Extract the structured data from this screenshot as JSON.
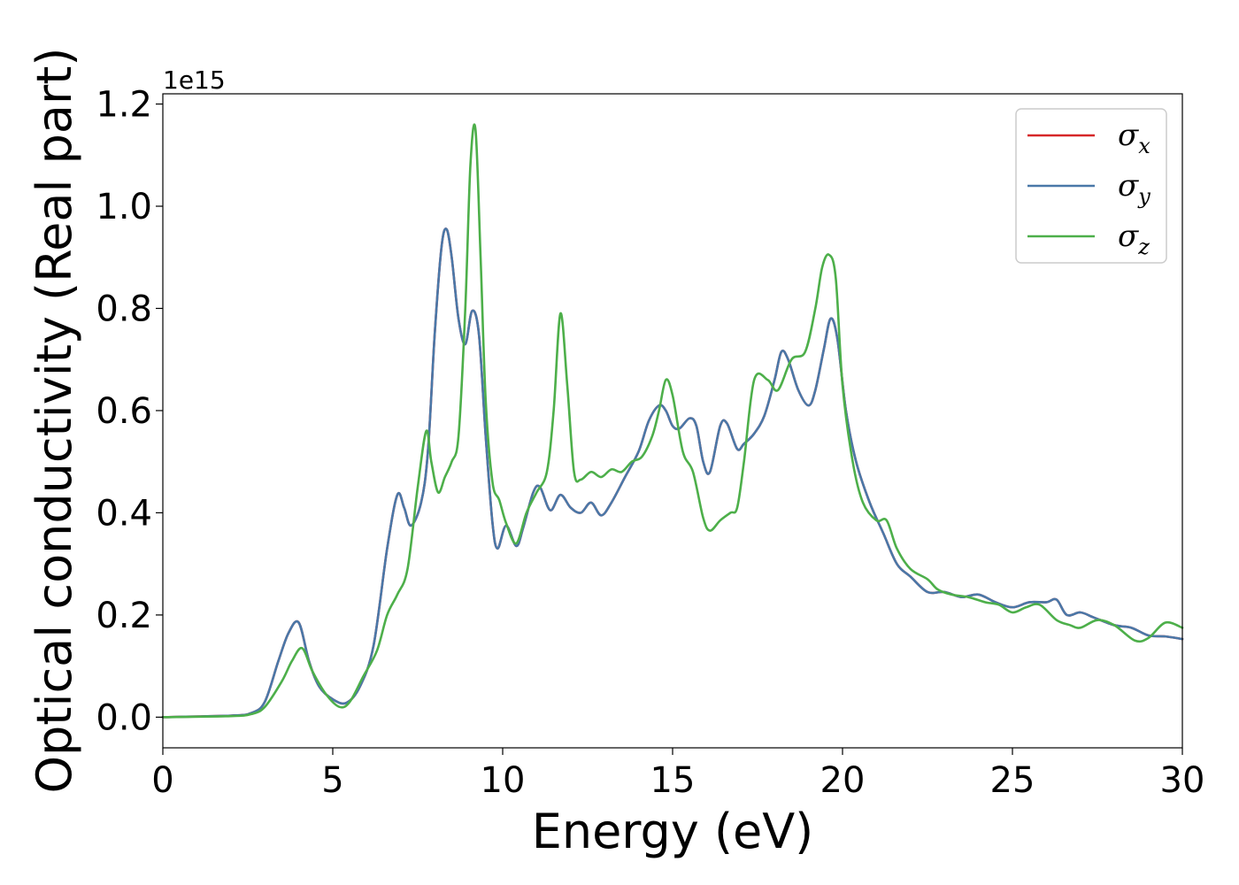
{
  "chart_data": {
    "type": "line",
    "title": "",
    "xlabel": "Energy (eV)",
    "ylabel": "Optical conductivity (Real part)",
    "y_offset_label": "1e15",
    "xlim": [
      0,
      30
    ],
    "ylim": [
      -0.06,
      1.22
    ],
    "x_ticks": [
      0,
      5,
      10,
      15,
      20,
      25,
      30
    ],
    "x_tick_labels": [
      "0",
      "5",
      "10",
      "15",
      "20",
      "25",
      "30"
    ],
    "y_ticks": [
      0.0,
      0.2,
      0.4,
      0.6,
      0.8,
      1.0,
      1.2
    ],
    "y_tick_labels": [
      "0.0",
      "0.2",
      "0.4",
      "0.6",
      "0.8",
      "1.0",
      "1.2"
    ],
    "grid": false,
    "legend_position": "top-right",
    "series": [
      {
        "name": "σx",
        "symbol": "σ",
        "subscript": "x",
        "color": "#d62728",
        "x": [
          0,
          2,
          2.6,
          3.0,
          3.4,
          3.7,
          4.0,
          4.3,
          4.6,
          5.0,
          5.4,
          5.8,
          6.2,
          6.6,
          6.9,
          7.1,
          7.3,
          7.6,
          7.8,
          8.0,
          8.2,
          8.35,
          8.5,
          8.7,
          8.9,
          9.1,
          9.3,
          9.5,
          9.7,
          9.85,
          10.1,
          10.4,
          10.6,
          10.9,
          11.1,
          11.4,
          11.7,
          12.0,
          12.3,
          12.6,
          12.9,
          13.2,
          13.6,
          14.0,
          14.3,
          14.6,
          14.8,
          15.0,
          15.2,
          15.5,
          15.7,
          15.9,
          16.1,
          16.4,
          16.6,
          16.9,
          17.1,
          17.4,
          17.7,
          18.0,
          18.2,
          18.4,
          18.7,
          19.0,
          19.2,
          19.45,
          19.65,
          19.85,
          20.1,
          20.4,
          20.8,
          21.2,
          21.6,
          22.0,
          22.5,
          23.0,
          23.5,
          24.0,
          24.5,
          25.0,
          25.5,
          26.0,
          26.3,
          26.6,
          27.0,
          27.4,
          28.0,
          28.5,
          29.0,
          29.5,
          30.0
        ],
        "y": [
          0.0,
          0.003,
          0.008,
          0.03,
          0.11,
          0.165,
          0.185,
          0.11,
          0.06,
          0.035,
          0.028,
          0.06,
          0.14,
          0.33,
          0.435,
          0.41,
          0.375,
          0.42,
          0.52,
          0.75,
          0.92,
          0.955,
          0.9,
          0.78,
          0.73,
          0.795,
          0.75,
          0.55,
          0.38,
          0.33,
          0.375,
          0.335,
          0.37,
          0.44,
          0.45,
          0.405,
          0.435,
          0.41,
          0.4,
          0.42,
          0.395,
          0.42,
          0.47,
          0.52,
          0.58,
          0.61,
          0.6,
          0.57,
          0.565,
          0.585,
          0.57,
          0.5,
          0.48,
          0.57,
          0.575,
          0.525,
          0.535,
          0.555,
          0.59,
          0.66,
          0.715,
          0.7,
          0.64,
          0.61,
          0.64,
          0.72,
          0.78,
          0.74,
          0.6,
          0.5,
          0.42,
          0.36,
          0.3,
          0.275,
          0.245,
          0.245,
          0.235,
          0.24,
          0.225,
          0.215,
          0.225,
          0.225,
          0.23,
          0.2,
          0.205,
          0.195,
          0.18,
          0.175,
          0.16,
          0.158,
          0.153
        ]
      },
      {
        "name": "σy",
        "symbol": "σ",
        "subscript": "y",
        "color": "#4a78a8",
        "x": [
          0,
          2,
          2.6,
          3.0,
          3.4,
          3.7,
          4.0,
          4.3,
          4.6,
          5.0,
          5.4,
          5.8,
          6.2,
          6.6,
          6.9,
          7.1,
          7.3,
          7.6,
          7.8,
          8.0,
          8.2,
          8.35,
          8.5,
          8.7,
          8.9,
          9.1,
          9.3,
          9.5,
          9.7,
          9.85,
          10.1,
          10.4,
          10.6,
          10.9,
          11.1,
          11.4,
          11.7,
          12.0,
          12.3,
          12.6,
          12.9,
          13.2,
          13.6,
          14.0,
          14.3,
          14.6,
          14.8,
          15.0,
          15.2,
          15.5,
          15.7,
          15.9,
          16.1,
          16.4,
          16.6,
          16.9,
          17.1,
          17.4,
          17.7,
          18.0,
          18.2,
          18.4,
          18.7,
          19.0,
          19.2,
          19.45,
          19.65,
          19.85,
          20.1,
          20.4,
          20.8,
          21.2,
          21.6,
          22.0,
          22.5,
          23.0,
          23.5,
          24.0,
          24.5,
          25.0,
          25.5,
          26.0,
          26.3,
          26.6,
          27.0,
          27.4,
          28.0,
          28.5,
          29.0,
          29.5,
          30.0
        ],
        "y": [
          0.0,
          0.003,
          0.008,
          0.03,
          0.11,
          0.165,
          0.185,
          0.11,
          0.06,
          0.035,
          0.028,
          0.06,
          0.14,
          0.33,
          0.435,
          0.41,
          0.375,
          0.42,
          0.52,
          0.75,
          0.92,
          0.955,
          0.9,
          0.78,
          0.73,
          0.795,
          0.75,
          0.55,
          0.38,
          0.33,
          0.375,
          0.335,
          0.37,
          0.44,
          0.45,
          0.405,
          0.435,
          0.41,
          0.4,
          0.42,
          0.395,
          0.42,
          0.47,
          0.52,
          0.58,
          0.61,
          0.6,
          0.57,
          0.565,
          0.585,
          0.57,
          0.5,
          0.48,
          0.57,
          0.575,
          0.525,
          0.535,
          0.555,
          0.59,
          0.66,
          0.715,
          0.7,
          0.64,
          0.61,
          0.64,
          0.72,
          0.78,
          0.74,
          0.6,
          0.5,
          0.42,
          0.36,
          0.3,
          0.275,
          0.245,
          0.245,
          0.235,
          0.24,
          0.225,
          0.215,
          0.225,
          0.225,
          0.23,
          0.2,
          0.205,
          0.195,
          0.18,
          0.175,
          0.16,
          0.158,
          0.153
        ]
      },
      {
        "name": "σz",
        "symbol": "σ",
        "subscript": "z",
        "color": "#4daf4a",
        "x": [
          0,
          2,
          2.6,
          3.0,
          3.5,
          3.8,
          4.1,
          4.4,
          4.8,
          5.2,
          5.5,
          5.9,
          6.3,
          6.6,
          6.9,
          7.2,
          7.5,
          7.75,
          7.9,
          8.1,
          8.3,
          8.5,
          8.7,
          8.9,
          9.05,
          9.2,
          9.35,
          9.5,
          9.7,
          9.9,
          10.1,
          10.4,
          10.7,
          11.0,
          11.3,
          11.5,
          11.7,
          11.9,
          12.1,
          12.3,
          12.6,
          12.9,
          13.2,
          13.5,
          13.8,
          14.1,
          14.4,
          14.6,
          14.8,
          15.0,
          15.3,
          15.6,
          15.9,
          16.1,
          16.4,
          16.7,
          16.9,
          17.1,
          17.4,
          17.8,
          18.1,
          18.5,
          18.9,
          19.2,
          19.4,
          19.6,
          19.8,
          20.0,
          20.3,
          20.6,
          21.0,
          21.3,
          21.6,
          22.0,
          22.5,
          22.8,
          23.2,
          23.7,
          24.2,
          24.6,
          25.0,
          25.4,
          25.8,
          26.3,
          26.7,
          27.0,
          27.5,
          28.0,
          28.6,
          29.0,
          29.5,
          30.0
        ],
        "y": [
          0.0,
          0.002,
          0.006,
          0.02,
          0.07,
          0.11,
          0.135,
          0.09,
          0.045,
          0.02,
          0.03,
          0.08,
          0.13,
          0.2,
          0.24,
          0.29,
          0.45,
          0.56,
          0.5,
          0.44,
          0.47,
          0.5,
          0.55,
          0.8,
          1.08,
          1.15,
          0.9,
          0.62,
          0.46,
          0.425,
          0.38,
          0.34,
          0.4,
          0.44,
          0.48,
          0.6,
          0.79,
          0.65,
          0.48,
          0.465,
          0.48,
          0.47,
          0.485,
          0.48,
          0.5,
          0.51,
          0.55,
          0.6,
          0.66,
          0.63,
          0.52,
          0.48,
          0.39,
          0.365,
          0.385,
          0.4,
          0.41,
          0.5,
          0.66,
          0.66,
          0.64,
          0.7,
          0.715,
          0.8,
          0.88,
          0.905,
          0.86,
          0.65,
          0.5,
          0.42,
          0.385,
          0.385,
          0.33,
          0.29,
          0.27,
          0.25,
          0.24,
          0.235,
          0.225,
          0.22,
          0.205,
          0.215,
          0.22,
          0.19,
          0.18,
          0.175,
          0.19,
          0.18,
          0.15,
          0.155,
          0.185,
          0.175
        ]
      }
    ]
  }
}
